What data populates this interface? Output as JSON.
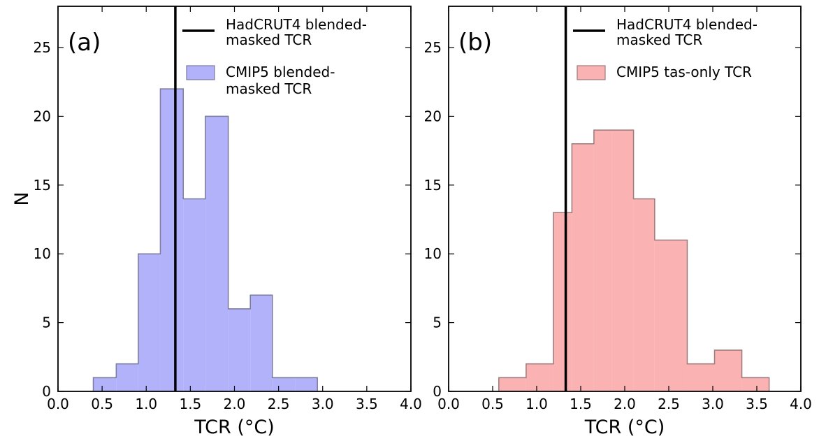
{
  "chart_data": [
    {
      "type": "histogram",
      "panel_label": "(a)",
      "xlabel": "TCR (°C)",
      "ylabel": "N",
      "xlim": [
        0.0,
        4.0
      ],
      "ylim": [
        0,
        28
      ],
      "xticks": [
        "0.0",
        "0.5",
        "1.0",
        "1.5",
        "2.0",
        "2.5",
        "3.0",
        "3.5",
        "4.0"
      ],
      "yticks": [
        "0",
        "5",
        "10",
        "15",
        "20",
        "25"
      ],
      "bins": [
        {
          "x0": 0.4,
          "x1": 0.66,
          "count": 1
        },
        {
          "x0": 0.66,
          "x1": 0.91,
          "count": 2
        },
        {
          "x0": 0.91,
          "x1": 1.16,
          "count": 10
        },
        {
          "x0": 1.16,
          "x1": 1.42,
          "count": 22
        },
        {
          "x0": 1.42,
          "x1": 1.67,
          "count": 14
        },
        {
          "x0": 1.67,
          "x1": 1.93,
          "count": 20
        },
        {
          "x0": 1.93,
          "x1": 2.18,
          "count": 6
        },
        {
          "x0": 2.18,
          "x1": 2.43,
          "count": 7
        },
        {
          "x0": 2.43,
          "x1": 2.69,
          "count": 1
        },
        {
          "x0": 2.69,
          "x1": 2.94,
          "count": 1
        }
      ],
      "vline": {
        "x": 1.33,
        "color": "#000000"
      },
      "fill_color": "#b2b2fb",
      "edge_color": "#7a7a9a",
      "legend": {
        "placement": "top-right",
        "line_entry": [
          "HadCRUT4 blended-",
          "masked TCR"
        ],
        "patch_entry": [
          "CMIP5 blended-",
          "masked TCR"
        ]
      },
      "grid": false
    },
    {
      "type": "histogram",
      "panel_label": "(b)",
      "xlabel": "TCR (°C)",
      "xlim": [
        0.0,
        4.0
      ],
      "ylim": [
        0,
        28
      ],
      "xticks": [
        "0.0",
        "0.5",
        "1.0",
        "1.5",
        "2.0",
        "2.5",
        "3.0",
        "3.5",
        "4.0"
      ],
      "yticks": [
        "0",
        "5",
        "10",
        "15",
        "20",
        "25"
      ],
      "bins": [
        {
          "x0": 0.57,
          "x1": 0.88,
          "count": 1
        },
        {
          "x0": 0.88,
          "x1": 1.19,
          "count": 2
        },
        {
          "x0": 1.19,
          "x1": 1.4,
          "count": 13
        },
        {
          "x0": 1.4,
          "x1": 1.65,
          "count": 18
        },
        {
          "x0": 1.65,
          "x1": 1.85,
          "count": 19
        },
        {
          "x0": 1.85,
          "x1": 2.1,
          "count": 19
        },
        {
          "x0": 2.1,
          "x1": 2.34,
          "count": 14
        },
        {
          "x0": 2.34,
          "x1": 2.71,
          "count": 11
        },
        {
          "x0": 2.71,
          "x1": 3.02,
          "count": 2
        },
        {
          "x0": 3.02,
          "x1": 3.33,
          "count": 3
        },
        {
          "x0": 3.33,
          "x1": 3.64,
          "count": 1
        }
      ],
      "vline": {
        "x": 1.33,
        "color": "#000000"
      },
      "fill_color": "#fbb2b2",
      "edge_color": "#9a7a7a",
      "legend": {
        "placement": "top-right",
        "line_entry": [
          "HadCRUT4 blended-",
          "masked TCR"
        ],
        "patch_entry": [
          "CMIP5 tas-only TCR"
        ]
      },
      "grid": false
    }
  ]
}
